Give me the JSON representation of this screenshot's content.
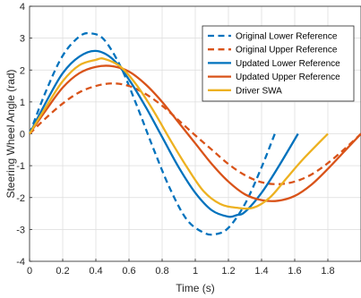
{
  "chart_data": {
    "type": "line",
    "title": "",
    "xlabel": "Time (s)",
    "ylabel": "Steering Wheel Angle (rad)",
    "xlim": [
      0,
      2
    ],
    "ylim": [
      -4,
      4
    ],
    "xticks": [
      0,
      0.2,
      0.4,
      0.6,
      0.8,
      1,
      1.2,
      1.4,
      1.6,
      1.8
    ],
    "xtick_labels": [
      "0",
      "0.2",
      "0.4",
      "0.6",
      "0.8",
      "1",
      "1.2",
      "1.4",
      "1.6",
      "1.8"
    ],
    "yticks": [
      -4,
      -3,
      -2,
      -1,
      0,
      1,
      2,
      3,
      4
    ],
    "ytick_labels": [
      "-4",
      "-3",
      "-2",
      "-1",
      "0",
      "1",
      "2",
      "3",
      "4"
    ],
    "grid": true,
    "legend_position": "top-right",
    "series": [
      {
        "name": "Original Lower Reference",
        "color": "#0072BD",
        "style": "dashed",
        "x": [
          0,
          0.1,
          0.2,
          0.3,
          0.37,
          0.45,
          0.55,
          0.65,
          0.75,
          0.85,
          0.95,
          1.05,
          1.12,
          1.2,
          1.3,
          1.4,
          1.48
        ],
        "y": [
          0,
          1.35,
          2.45,
          3.05,
          3.15,
          2.95,
          2.1,
          0.85,
          -0.5,
          -1.75,
          -2.7,
          -3.1,
          -3.15,
          -2.95,
          -2.2,
          -1.05,
          0
        ]
      },
      {
        "name": "Original Upper Reference",
        "color": "#D95319",
        "style": "dashed",
        "x": [
          0,
          0.1,
          0.2,
          0.3,
          0.4,
          0.5,
          0.6,
          0.7,
          0.8,
          0.9,
          1.0,
          1.1,
          1.2,
          1.3,
          1.4,
          1.5,
          1.6,
          1.7,
          1.8,
          1.9,
          2.0
        ],
        "y": [
          0,
          0.5,
          0.95,
          1.3,
          1.5,
          1.58,
          1.5,
          1.25,
          0.88,
          0.42,
          -0.05,
          -0.5,
          -0.95,
          -1.3,
          -1.52,
          -1.58,
          -1.5,
          -1.28,
          -0.92,
          -0.48,
          0
        ]
      },
      {
        "name": "Updated Lower Reference",
        "color": "#0072BD",
        "style": "solid",
        "x": [
          0,
          0.1,
          0.2,
          0.3,
          0.4,
          0.5,
          0.6,
          0.7,
          0.8,
          0.9,
          1.0,
          1.1,
          1.2,
          1.25,
          1.3,
          1.4,
          1.5,
          1.62
        ],
        "y": [
          0,
          1.0,
          1.9,
          2.42,
          2.6,
          2.35,
          1.7,
          0.85,
          -0.1,
          -1.05,
          -1.85,
          -2.4,
          -2.6,
          -2.55,
          -2.45,
          -1.85,
          -1.05,
          0
        ]
      },
      {
        "name": "Updated Upper Reference",
        "color": "#D95319",
        "style": "solid",
        "x": [
          0,
          0.1,
          0.2,
          0.3,
          0.4,
          0.5,
          0.6,
          0.7,
          0.8,
          0.9,
          1.0,
          1.1,
          1.2,
          1.3,
          1.4,
          1.5,
          1.6,
          1.7,
          1.8,
          1.9,
          2.0
        ],
        "y": [
          0,
          0.75,
          1.45,
          1.9,
          2.1,
          2.12,
          1.95,
          1.55,
          1.0,
          0.35,
          -0.3,
          -0.95,
          -1.5,
          -1.9,
          -2.08,
          -2.1,
          -1.95,
          -1.6,
          -1.1,
          -0.55,
          0
        ]
      },
      {
        "name": "Driver SWA",
        "color": "#EDB120",
        "style": "solid",
        "x": [
          0,
          0.1,
          0.2,
          0.3,
          0.4,
          0.45,
          0.55,
          0.65,
          0.75,
          0.85,
          0.95,
          1.05,
          1.15,
          1.25,
          1.35,
          1.45,
          1.55,
          1.65,
          1.8
        ],
        "y": [
          0,
          0.85,
          1.65,
          2.15,
          2.32,
          2.35,
          2.1,
          1.5,
          0.7,
          -0.2,
          -1.05,
          -1.8,
          -2.2,
          -2.32,
          -2.32,
          -2.0,
          -1.4,
          -0.8,
          0
        ]
      }
    ]
  }
}
